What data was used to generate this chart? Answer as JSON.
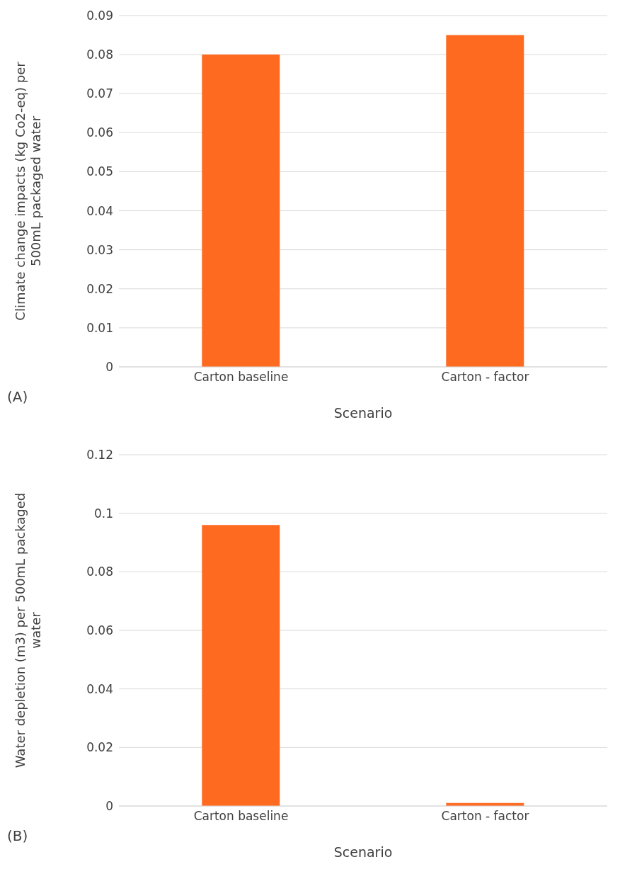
{
  "chart_data": [
    {
      "type": "bar",
      "xlabel": "Scenario",
      "ylabel": "Climate change impacts (kg Co2-eq) per 500mL packaged water",
      "categories": [
        "Carton baseline",
        "Carton - factor"
      ],
      "values": [
        0.08,
        0.085
      ],
      "color": "#ff6a21",
      "ylim": [
        0,
        0.09
      ],
      "yticks": [
        0,
        0.01,
        0.02,
        0.03,
        0.04,
        0.05,
        0.06,
        0.07,
        0.08,
        0.09
      ],
      "grid": "y",
      "legend": false,
      "annotations": [
        "(A)"
      ]
    },
    {
      "type": "bar",
      "xlabel": "Scenario",
      "ylabel": "Water depletion (m3) per 500mL packaged water",
      "categories": [
        "Carton baseline",
        "Carton - factor"
      ],
      "values": [
        0.096,
        0.001
      ],
      "color": "#ff6a21",
      "ylim": [
        0,
        0.12
      ],
      "yticks": [
        0,
        0.02,
        0.04,
        0.06,
        0.08,
        0.1,
        0.12
      ],
      "grid": "y",
      "legend": false,
      "annotations": [
        "(B)"
      ]
    }
  ]
}
